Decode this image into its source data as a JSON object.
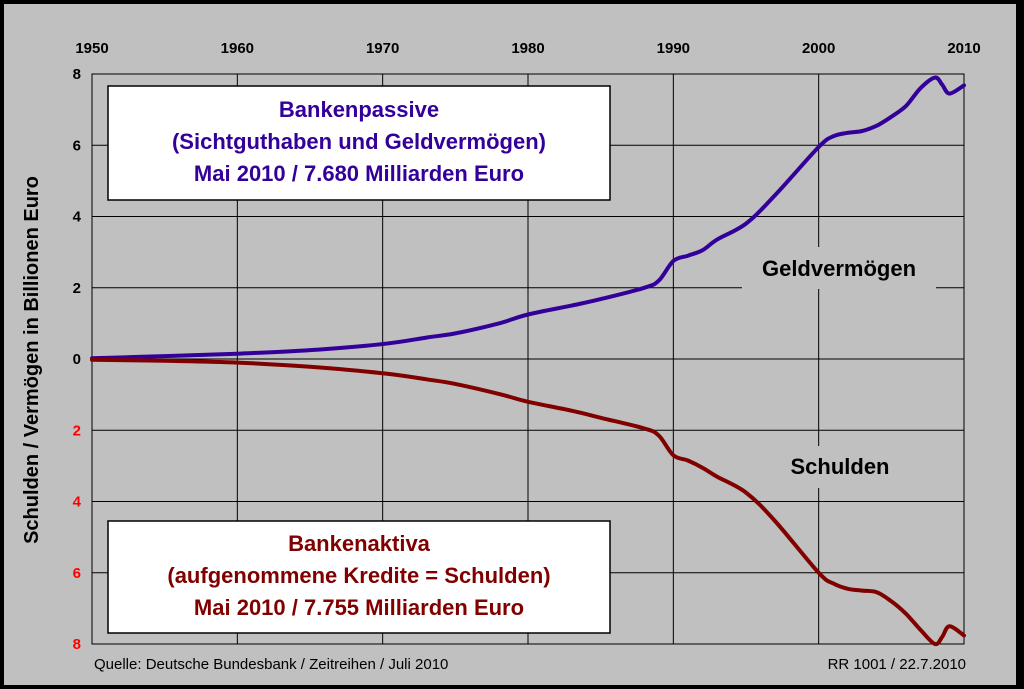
{
  "chart_data": {
    "type": "line",
    "x_ticks": [
      "1950",
      "1960",
      "1970",
      "1980",
      "1990",
      "2000",
      "2010"
    ],
    "xlim": [
      1950,
      2010
    ],
    "y_ticks_upper": [
      "8",
      "6",
      "4",
      "2",
      "0"
    ],
    "y_ticks_lower": [
      "2",
      "4",
      "6",
      "8"
    ],
    "ylim": [
      -8,
      8
    ],
    "ylabel": "Schulden / Vermögen in Billionen Euro",
    "grid": true,
    "colors": {
      "geldvermoegen": "#330099",
      "schulden": "#800000",
      "lower_tick_color": "#ff0000",
      "plot_bg": "#c0c0c0"
    },
    "series": [
      {
        "name": "Geldvermögen",
        "x": [
          1950,
          1955,
          1960,
          1965,
          1970,
          1973,
          1975,
          1978,
          1980,
          1983,
          1985,
          1988,
          1989,
          1990,
          1991,
          1992,
          1993,
          1995,
          1997,
          2000,
          2001,
          2002,
          2003,
          2004,
          2005,
          2006,
          2007,
          2008,
          2008.5,
          2009,
          2010
        ],
        "values": [
          0.02,
          0.08,
          0.15,
          0.25,
          0.42,
          0.6,
          0.72,
          1.0,
          1.25,
          1.5,
          1.68,
          2.0,
          2.2,
          2.75,
          2.9,
          3.05,
          3.35,
          3.8,
          4.6,
          5.95,
          6.25,
          6.35,
          6.4,
          6.55,
          6.8,
          7.1,
          7.6,
          7.9,
          7.7,
          7.45,
          7.68
        ]
      },
      {
        "name": "Schulden",
        "x": [
          1950,
          1955,
          1960,
          1965,
          1970,
          1973,
          1975,
          1978,
          1980,
          1983,
          1985,
          1988,
          1989,
          1990,
          1991,
          1992,
          1993,
          1995,
          1997,
          2000,
          2001,
          2002,
          2003,
          2004,
          2005,
          2006,
          2007,
          2008,
          2008.5,
          2009,
          2010
        ],
        "values": [
          -0.02,
          -0.05,
          -0.1,
          -0.22,
          -0.4,
          -0.57,
          -0.7,
          -0.98,
          -1.2,
          -1.45,
          -1.65,
          -1.95,
          -2.15,
          -2.7,
          -2.85,
          -3.05,
          -3.3,
          -3.75,
          -4.55,
          -6.0,
          -6.3,
          -6.45,
          -6.5,
          -6.55,
          -6.8,
          -7.15,
          -7.6,
          -8.0,
          -7.8,
          -7.5,
          -7.76
        ]
      }
    ],
    "annotations": {
      "geldvermoegen_label": "Geldvermögen",
      "schulden_label": "Schulden"
    },
    "box_upper": {
      "line1": "Bankenpassive",
      "line2": "(Sichtguthaben und Geldvermögen)",
      "line3": "Mai 2010 / 7.680 Milliarden Euro"
    },
    "box_lower": {
      "line1": "Bankenaktiva",
      "line2": "(aufgenommene Kredite = Schulden)",
      "line3": "Mai 2010 / 7.755 Milliarden Euro"
    },
    "source_left": "Quelle: Deutsche Bundesbank / Zeitreihen / Juli 2010",
    "source_right": "RR 1001 / 22.7.2010"
  }
}
